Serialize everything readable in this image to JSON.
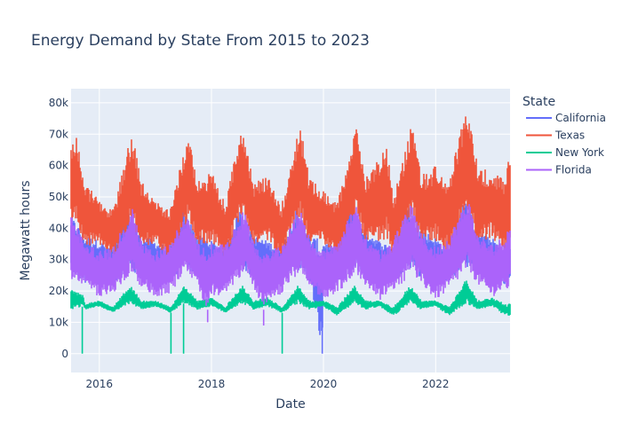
{
  "chart_data": {
    "type": "line",
    "title": "Energy Demand by State From 2015 to 2023",
    "xlabel": "Date",
    "ylabel": "Megawatt hours",
    "x_range": [
      "2015-07-01",
      "2023-05-01"
    ],
    "x_ticks": [
      {
        "date": "2016-01-01",
        "label": "2016"
      },
      {
        "date": "2018-01-01",
        "label": "2018"
      },
      {
        "date": "2020-01-01",
        "label": "2020"
      },
      {
        "date": "2022-01-01",
        "label": "2022"
      }
    ],
    "ylim": [
      -6000,
      84500
    ],
    "y_ticks": [
      {
        "value": 0,
        "label": "0"
      },
      {
        "value": 10000,
        "label": "10k"
      },
      {
        "value": 20000,
        "label": "20k"
      },
      {
        "value": 30000,
        "label": "30k"
      },
      {
        "value": 40000,
        "label": "40k"
      },
      {
        "value": 50000,
        "label": "50k"
      },
      {
        "value": 60000,
        "label": "60k"
      },
      {
        "value": 70000,
        "label": "70k"
      },
      {
        "value": 80000,
        "label": "80k"
      }
    ],
    "grid": true,
    "legend": {
      "title": "State",
      "position": "right"
    },
    "series": [
      {
        "name": "California",
        "color": "#636efa",
        "dates": [
          "2015-07-01",
          "2015-10-01",
          "2016-01-01",
          "2016-04-01",
          "2016-07-01",
          "2016-10-01",
          "2017-01-01",
          "2017-04-01",
          "2017-07-01",
          "2017-10-01",
          "2018-01-01",
          "2018-04-01",
          "2018-07-01",
          "2018-10-01",
          "2019-01-01",
          "2019-04-01",
          "2019-07-01",
          "2019-10-01",
          "2019-12-24",
          "2020-01-01",
          "2020-04-01",
          "2020-07-01",
          "2020-10-01",
          "2021-01-01",
          "2021-04-01",
          "2021-07-01",
          "2021-10-01",
          "2022-01-01",
          "2022-04-01",
          "2022-07-01",
          "2022-10-01",
          "2023-01-01",
          "2023-04-01",
          "2023-05-01"
        ],
        "low": [
          26000,
          22000,
          25000,
          22000,
          27000,
          24000,
          25000,
          22000,
          28000,
          24000,
          25000,
          22000,
          28000,
          24000,
          25000,
          22000,
          27000,
          24000,
          0,
          25000,
          22000,
          28000,
          24000,
          25000,
          22000,
          28000,
          24000,
          25000,
          22000,
          29000,
          24000,
          25000,
          22000,
          23000
        ],
        "high": [
          44000,
          38000,
          36000,
          34000,
          46000,
          38000,
          36000,
          34000,
          46000,
          38000,
          36000,
          34000,
          47000,
          38000,
          36000,
          34000,
          46000,
          38000,
          36000,
          36000,
          34000,
          48000,
          40000,
          36000,
          34000,
          48000,
          40000,
          37000,
          34000,
          50000,
          40000,
          37000,
          34000,
          34000
        ]
      },
      {
        "name": "Texas",
        "color": "#ef553b",
        "dates": [
          "2015-07-01",
          "2015-08-01",
          "2015-10-01",
          "2016-01-01",
          "2016-04-01",
          "2016-08-01",
          "2016-10-01",
          "2017-01-01",
          "2017-04-01",
          "2017-08-01",
          "2017-10-01",
          "2018-01-01",
          "2018-04-01",
          "2018-07-15",
          "2018-10-01",
          "2019-01-01",
          "2019-04-01",
          "2019-08-01",
          "2019-10-01",
          "2020-01-01",
          "2020-04-01",
          "2020-08-01",
          "2020-10-01",
          "2021-02-15",
          "2021-04-01",
          "2021-08-01",
          "2021-10-01",
          "2022-01-01",
          "2022-04-01",
          "2022-07-20",
          "2022-10-01",
          "2023-01-01",
          "2023-04-01",
          "2023-05-01"
        ],
        "low": [
          40000,
          42000,
          34000,
          35000,
          30000,
          42000,
          34000,
          35000,
          30000,
          42000,
          34000,
          35000,
          30000,
          43000,
          34000,
          36000,
          30000,
          43000,
          34000,
          35000,
          30000,
          43000,
          34000,
          36000,
          30000,
          44000,
          34000,
          36000,
          31000,
          46000,
          35000,
          37000,
          32000,
          33000
        ],
        "high": [
          66000,
          70000,
          55000,
          49000,
          46000,
          71000,
          55000,
          49000,
          46000,
          70000,
          55000,
          58000,
          48000,
          73000,
          55000,
          57000,
          47000,
          74000,
          56000,
          52000,
          48000,
          74000,
          56000,
          68000,
          50000,
          74000,
          57000,
          60000,
          55000,
          80000,
          60000,
          58000,
          56000,
          69000
        ]
      },
      {
        "name": "New York",
        "color": "#00cc96",
        "dates": [
          "2015-07-01",
          "2015-09-10",
          "2015-09-12",
          "2015-09-14",
          "2015-10-01",
          "2016-01-01",
          "2016-04-01",
          "2016-07-20",
          "2016-10-01",
          "2017-01-01",
          "2017-04-10",
          "2017-04-12",
          "2017-04-14",
          "2017-07-01",
          "2017-07-03",
          "2017-07-05",
          "2017-10-01",
          "2018-01-01",
          "2018-04-01",
          "2018-07-20",
          "2018-10-01",
          "2019-01-01",
          "2019-04-05",
          "2019-04-07",
          "2019-04-09",
          "2019-07-20",
          "2019-10-01",
          "2020-01-01",
          "2020-04-01",
          "2020-07-20",
          "2020-10-01",
          "2021-01-01",
          "2021-04-01",
          "2021-07-20",
          "2021-10-01",
          "2022-01-01",
          "2022-04-01",
          "2022-07-20",
          "2022-10-01",
          "2023-01-01",
          "2023-04-01",
          "2023-05-01"
        ],
        "low": [
          14000,
          15000,
          0,
          15000,
          14000,
          15000,
          13000,
          16000,
          14000,
          15000,
          13000,
          0,
          13000,
          16000,
          0,
          16000,
          14000,
          15000,
          13000,
          16000,
          14000,
          15000,
          13000,
          0,
          13000,
          16000,
          14000,
          15000,
          12000,
          16000,
          14000,
          15000,
          12000,
          16000,
          14000,
          15000,
          12000,
          16000,
          14000,
          15000,
          12000,
          12000
        ],
        "high": [
          21000,
          19000,
          19000,
          19000,
          16000,
          17000,
          15000,
          22000,
          17000,
          17000,
          15000,
          15000,
          15000,
          22000,
          22000,
          22000,
          17000,
          18000,
          15000,
          22000,
          17000,
          18000,
          15000,
          15000,
          15000,
          22000,
          17000,
          17000,
          15000,
          22000,
          17000,
          17000,
          15000,
          22000,
          17000,
          17000,
          15000,
          24000,
          17000,
          18000,
          16000,
          16000
        ]
      },
      {
        "name": "Florida",
        "color": "#ab63fa",
        "dates": [
          "2015-07-01",
          "2015-10-01",
          "2016-01-01",
          "2016-04-01",
          "2016-08-01",
          "2016-10-01",
          "2017-01-01",
          "2017-04-01",
          "2017-08-01",
          "2017-10-01",
          "2017-12-05",
          "2017-12-07",
          "2017-12-09",
          "2018-01-01",
          "2018-04-01",
          "2018-08-01",
          "2018-10-01",
          "2018-12-05",
          "2018-12-07",
          "2018-12-09",
          "2019-01-01",
          "2019-04-01",
          "2019-08-01",
          "2019-10-01",
          "2020-01-01",
          "2020-04-01",
          "2020-08-01",
          "2020-10-01",
          "2021-01-01",
          "2021-04-01",
          "2021-08-01",
          "2021-10-01",
          "2022-01-01",
          "2022-04-01",
          "2022-08-01",
          "2022-10-01",
          "2023-01-01",
          "2023-04-01",
          "2023-05-01"
        ],
        "low": [
          24000,
          21000,
          18000,
          19000,
          26000,
          21000,
          18000,
          19000,
          26000,
          21000,
          14000,
          10000,
          14000,
          18000,
          19000,
          26000,
          21000,
          14000,
          9000,
          14000,
          17000,
          19000,
          26000,
          21000,
          17000,
          19000,
          26000,
          21000,
          17000,
          19000,
          26000,
          22000,
          17000,
          20000,
          27000,
          22000,
          18000,
          20000,
          20000
        ],
        "high": [
          44000,
          36000,
          33000,
          34000,
          47000,
          36000,
          33000,
          35000,
          46000,
          36000,
          33000,
          33000,
          33000,
          35000,
          35000,
          46000,
          36000,
          33000,
          33000,
          33000,
          33000,
          35000,
          47000,
          37000,
          33000,
          36000,
          48000,
          37000,
          33000,
          37000,
          49000,
          38000,
          34000,
          38000,
          50000,
          38000,
          35000,
          38000,
          43000
        ]
      }
    ]
  }
}
